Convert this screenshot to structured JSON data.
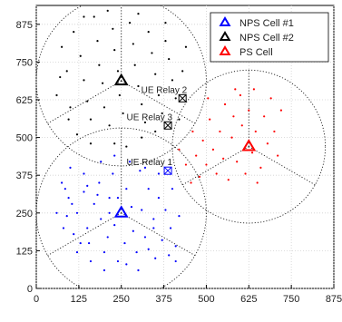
{
  "chart_data": {
    "type": "scatter",
    "title": "",
    "xlabel": "",
    "ylabel": "",
    "xlim": [
      0,
      875
    ],
    "ylim": [
      0,
      937.5
    ],
    "x_ticks": [
      0,
      125,
      250,
      375,
      500,
      625,
      750,
      875
    ],
    "y_ticks": [
      0,
      125,
      250,
      375,
      500,
      625,
      750,
      875
    ],
    "grid": true,
    "legend_position": "top-right",
    "legend": [
      {
        "name": "NPS Cell #1",
        "color": "#0000ff"
      },
      {
        "name": "NPS Cell #2",
        "color": "#000000"
      },
      {
        "name": "PS Cell",
        "color": "#ff0000"
      }
    ],
    "cells": [
      {
        "name": "NPS Cell #1",
        "color": "#0000ff",
        "center": [
          250,
          250
        ],
        "radius": 250,
        "users": [
          [
            75,
            350
          ],
          [
            95,
            300
          ],
          [
            60,
            250
          ],
          [
            80,
            200
          ],
          [
            100,
            400
          ],
          [
            120,
            250
          ],
          [
            140,
            320
          ],
          [
            150,
            200
          ],
          [
            155,
            150
          ],
          [
            170,
            280
          ],
          [
            185,
            350
          ],
          [
            190,
            230
          ],
          [
            200,
            120
          ],
          [
            210,
            170
          ],
          [
            215,
            300
          ],
          [
            225,
            380
          ],
          [
            230,
            210
          ],
          [
            240,
            90
          ],
          [
            260,
            150
          ],
          [
            265,
            330
          ],
          [
            280,
            270
          ],
          [
            285,
            190
          ],
          [
            295,
            120
          ],
          [
            305,
            390
          ],
          [
            310,
            260
          ],
          [
            320,
            170
          ],
          [
            330,
            330
          ],
          [
            345,
            230
          ],
          [
            350,
            100
          ],
          [
            360,
            300
          ],
          [
            370,
            160
          ],
          [
            380,
            260
          ],
          [
            395,
            200
          ],
          [
            400,
            330
          ],
          [
            410,
            140
          ],
          [
            420,
            240
          ],
          [
            410,
            90
          ],
          [
            300,
            60
          ],
          [
            200,
            60
          ],
          [
            160,
            90
          ],
          [
            130,
            150
          ],
          [
            110,
            180
          ],
          [
            90,
            240
          ],
          [
            85,
            330
          ],
          [
            140,
            380
          ],
          [
            190,
            420
          ],
          [
            230,
            440
          ],
          [
            275,
            420
          ],
          [
            320,
            400
          ],
          [
            360,
            380
          ],
          [
            120,
            120
          ],
          [
            240,
            300
          ],
          [
            180,
            310
          ],
          [
            265,
            80
          ],
          [
            330,
            130
          ],
          [
            390,
            110
          ],
          [
            105,
            280
          ],
          [
            150,
            340
          ],
          [
            215,
            250
          ],
          [
            345,
            200
          ]
        ]
      },
      {
        "name": "NPS Cell #2",
        "color": "#000000",
        "center": [
          250,
          687.5
        ],
        "radius": 250,
        "users": [
          [
            75,
            800
          ],
          [
            90,
            720
          ],
          [
            60,
            640
          ],
          [
            100,
            600
          ],
          [
            110,
            850
          ],
          [
            130,
            770
          ],
          [
            140,
            690
          ],
          [
            150,
            620
          ],
          [
            160,
            560
          ],
          [
            170,
            900
          ],
          [
            180,
            820
          ],
          [
            185,
            740
          ],
          [
            195,
            680
          ],
          [
            200,
            600
          ],
          [
            215,
            540
          ],
          [
            225,
            860
          ],
          [
            230,
            790
          ],
          [
            240,
            720
          ],
          [
            245,
            640
          ],
          [
            255,
            580
          ],
          [
            265,
            470
          ],
          [
            275,
            880
          ],
          [
            285,
            810
          ],
          [
            290,
            740
          ],
          [
            300,
            670
          ],
          [
            310,
            610
          ],
          [
            320,
            550
          ],
          [
            330,
            850
          ],
          [
            340,
            780
          ],
          [
            350,
            710
          ],
          [
            360,
            640
          ],
          [
            370,
            580
          ],
          [
            380,
            820
          ],
          [
            390,
            760
          ],
          [
            400,
            690
          ],
          [
            410,
            630
          ],
          [
            420,
            560
          ],
          [
            430,
            720
          ],
          [
            440,
            800
          ],
          [
            120,
            510
          ],
          [
            160,
            480
          ],
          [
            230,
            480
          ],
          [
            310,
            500
          ],
          [
            350,
            520
          ],
          [
            140,
            900
          ],
          [
            210,
            920
          ],
          [
            300,
            910
          ],
          [
            380,
            880
          ],
          [
            70,
            700
          ],
          [
            95,
            560
          ]
        ]
      },
      {
        "name": "PS Cell",
        "color": "#ff0000",
        "center": [
          625,
          470
        ],
        "radius": 225,
        "users": [
          [
            420,
            460
          ],
          [
            440,
            410
          ],
          [
            460,
            520
          ],
          [
            470,
            440
          ],
          [
            480,
            370
          ],
          [
            490,
            490
          ],
          [
            500,
            410
          ],
          [
            510,
            560
          ],
          [
            520,
            460
          ],
          [
            530,
            380
          ],
          [
            540,
            520
          ],
          [
            550,
            430
          ],
          [
            555,
            610
          ],
          [
            565,
            360
          ],
          [
            575,
            500
          ],
          [
            580,
            570
          ],
          [
            590,
            420
          ],
          [
            600,
            640
          ],
          [
            605,
            540
          ],
          [
            615,
            380
          ],
          [
            625,
            590
          ],
          [
            635,
            450
          ],
          [
            640,
            660
          ],
          [
            645,
            520
          ],
          [
            660,
            400
          ],
          [
            670,
            570
          ],
          [
            680,
            480
          ],
          [
            690,
            630
          ],
          [
            700,
            520
          ],
          [
            710,
            440
          ],
          [
            720,
            590
          ],
          [
            455,
            350
          ],
          [
            505,
            630
          ],
          [
            585,
            660
          ],
          [
            650,
            350
          ]
        ]
      }
    ],
    "relays": [
      {
        "label": "UE Relay 1",
        "color": "#0000ff",
        "position": [
          387,
          390
        ]
      },
      {
        "label": "UE Relay 2",
        "color": "#000000",
        "position": [
          430,
          630
        ]
      },
      {
        "label": "UE Relay 3",
        "color": "#000000",
        "position": [
          387,
          540
        ]
      }
    ]
  }
}
